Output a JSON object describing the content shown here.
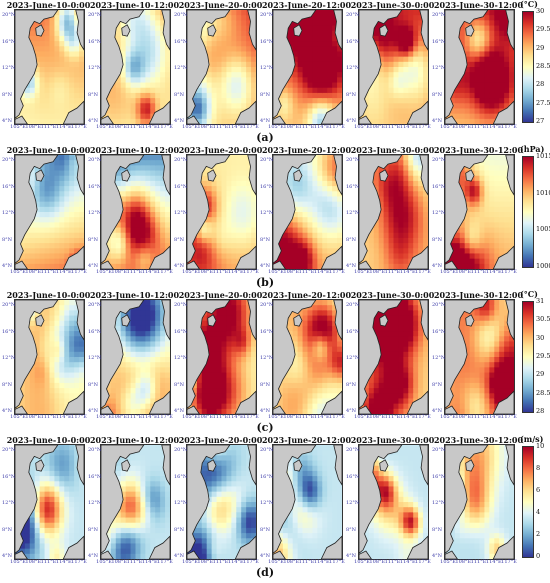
{
  "chart_data": {
    "type": "heatmap",
    "columns": [
      "2023-June-10-0:00",
      "2023-June-10-12:00",
      "2023-June-20-0:00",
      "2023-June-20-12:00",
      "2023-June-30-0:00",
      "2023-June-30-12:00"
    ],
    "lat_labels": [
      "20°N",
      "16°N",
      "12°N",
      "8°N",
      "4°N"
    ],
    "lon_labels": [
      "105°E",
      "108°E",
      "111°E",
      "114°E",
      "117°E"
    ],
    "panels": [
      {
        "label": "(a)",
        "unit": "(°C)",
        "colormap": "RdYlBu_r",
        "range": [
          27,
          30
        ],
        "ticks": [
          "30",
          "29.5",
          "29",
          "28.5",
          "28",
          "27.5",
          "27"
        ],
        "seed": 11
      },
      {
        "label": "(b)",
        "unit": "(hPa)",
        "colormap": "RdYlBu_r",
        "range": [
          1000,
          1015
        ],
        "ticks": [
          "1015",
          "1010",
          "1005",
          "1000"
        ],
        "seed": 23
      },
      {
        "label": "(c)",
        "unit": "(°C)",
        "colormap": "RdYlBu_r",
        "range": [
          28,
          31
        ],
        "ticks": [
          "31",
          "30.5",
          "30",
          "29.5",
          "29",
          "28.5",
          "28"
        ],
        "seed": 37
      },
      {
        "label": "(d)",
        "unit": "(m/s)",
        "colormap": "RdYlBu_r",
        "range": [
          0,
          10
        ],
        "ticks": [
          "10",
          "8",
          "6",
          "4",
          "2",
          "0"
        ],
        "seed": 51
      }
    ],
    "colors": {
      "land": "#c8c8c8",
      "coast": "#222222",
      "tick_label": "#3a3aa8"
    }
  }
}
